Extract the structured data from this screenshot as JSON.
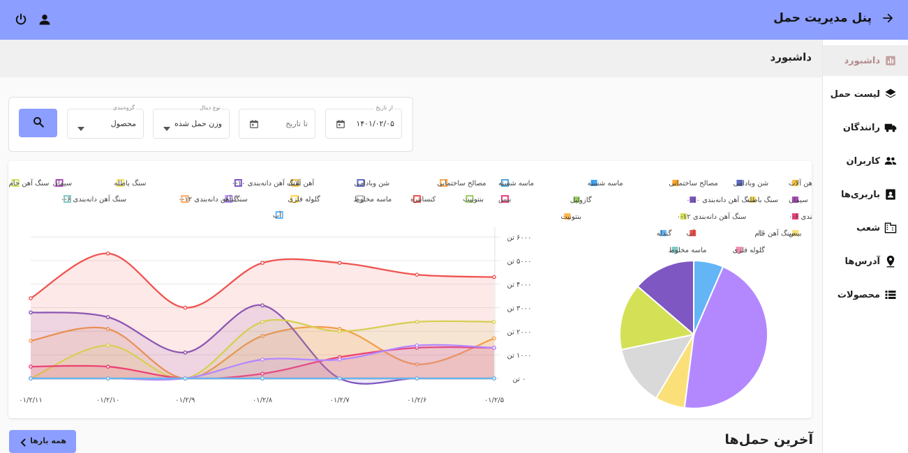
{
  "header": {
    "title": "پنل مدیریت حمل"
  },
  "sidebar": {
    "items": [
      {
        "label": "داشبورد",
        "icon": "chart-icon",
        "active": true
      },
      {
        "label": "لیست حمل",
        "icon": "layers-icon"
      },
      {
        "label": "رانندگان",
        "icon": "truck-icon"
      },
      {
        "label": "کاربران",
        "icon": "people-icon"
      },
      {
        "label": "باربری‌ها",
        "icon": "contact-card-icon"
      },
      {
        "label": "شعب",
        "icon": "building-icon"
      },
      {
        "label": "آدرس‌ها",
        "icon": "location-pin-icon"
      },
      {
        "label": "محصولات",
        "icon": "list-icon"
      }
    ]
  },
  "page": {
    "title": "داشبورد",
    "latest_title": "آخرین حمل‌ها",
    "all_button": "همه بارها"
  },
  "filters": {
    "from_date": {
      "label": "از تاریخ",
      "value": "۱۴۰۱/۰۲/۰۵"
    },
    "to_date": {
      "placeholder": "تا تاریخ"
    },
    "detail_type": {
      "label": "نوع دیتال",
      "value": "وزن حمل شده"
    },
    "grouping": {
      "label": "گروه‌بندی",
      "value": "محصول"
    }
  },
  "chart_data": [
    {
      "type": "area",
      "x": [
        "۰۱/۲/۱۱",
        "۰۱/۲/۱۰",
        "۰۱/۲/۹",
        "۰۱/۲/۸",
        "۰۱/۲/۷",
        "۰۱/۲/۶",
        "۰۱/۲/۵"
      ],
      "y_ticks": [
        "۰ تن",
        "۱۰۰۰ تن",
        "۲۰۰۰ تن",
        "۳۰۰۰ تن",
        "۴۰۰۰ تن",
        "۵۰۰۰ تن",
        "۶۰۰۰ تن"
      ],
      "ylim": [
        0,
        6000
      ],
      "legend": "top",
      "series": [
        {
          "name": "ماسه شسته",
          "color": "#4fa3e0",
          "values": [
            0,
            0,
            0,
            0,
            0,
            0,
            0
          ]
        },
        {
          "name": "مصالح ساختمانی",
          "color": "#f7a54a",
          "values": [
            1600,
            2100,
            0,
            1800,
            2100,
            600,
            1700
          ]
        },
        {
          "name": "شن وبادامی",
          "color": "#5b6bc0",
          "values": [
            0,
            0,
            0,
            0,
            0,
            0,
            0
          ]
        },
        {
          "name": "آهن آلات",
          "color": "#f5c242",
          "values": [
            0,
            0,
            0,
            0,
            0,
            0,
            0
          ]
        },
        {
          "name": "سنگ آهن دانه‌بندی ۱۰-۰",
          "color": "#7e57c2",
          "values": [
            2800,
            2600,
            1100,
            3100,
            0,
            0,
            0
          ]
        },
        {
          "name": "سنگ باطله",
          "color": "#f5e26b",
          "values": [
            0,
            0,
            0,
            0,
            0,
            0,
            0
          ]
        },
        {
          "name": "سیمان",
          "color": "#ab47bc",
          "values": [
            0,
            0,
            0,
            0,
            0,
            0,
            0
          ]
        },
        {
          "name": "سنگ آهن خام",
          "color": "#d4e157",
          "values": [
            0,
            1400,
            0,
            2400,
            2000,
            2400,
            2400
          ]
        },
        {
          "name": "بیس",
          "color": "#ec407a",
          "values": [
            500,
            500,
            0,
            200,
            900,
            1300,
            1300
          ]
        },
        {
          "name": "بنتونیت",
          "color": "#9ccc65",
          "values": [
            0,
            0,
            0,
            0,
            0,
            0,
            0
          ]
        },
        {
          "name": "کنسانتره",
          "color": "#ef5350",
          "values": [
            3400,
            5300,
            3000,
            4900,
            4900,
            4400,
            4300
          ]
        },
        {
          "name": "ماسه مخلوط",
          "color": "#bdbdbd",
          "values": [
            0,
            0,
            0,
            0,
            0,
            0,
            0
          ]
        },
        {
          "name": "گلوله فلزی",
          "color": "#ffd54f",
          "values": [
            0,
            0,
            0,
            0,
            0,
            0,
            0
          ]
        },
        {
          "name": "گندله",
          "color": "#b388ff",
          "values": [
            0,
            0,
            0,
            800,
            800,
            1400,
            1300
          ]
        },
        {
          "name": "سنگ آهن دانه‌بندی ۱۲-۰",
          "color": "#ffab66",
          "values": [
            0,
            0,
            0,
            0,
            0,
            0,
            0
          ]
        },
        {
          "name": "سنگ آهن دانه‌بندی ۶-۰",
          "color": "#80cbc4",
          "values": [
            0,
            0,
            0,
            0,
            0,
            0,
            0
          ]
        },
        {
          "name": "گازوئیل",
          "color": "#f48fb1",
          "values": [
            0,
            0,
            0,
            0,
            0,
            0,
            0
          ]
        },
        {
          "name": "آب",
          "color": "#64b5f6",
          "values": [
            0,
            0,
            0,
            0,
            0,
            0,
            0
          ]
        }
      ]
    },
    {
      "type": "pie",
      "legend": "top",
      "slices": [
        {
          "name": "آهن آلات",
          "color": "#f5c242",
          "value": 0
        },
        {
          "name": "شن وبادامی",
          "color": "#5c6bc0",
          "value": 0
        },
        {
          "name": "مصالح ساختمانی",
          "color": "#ffa726",
          "value": 0
        },
        {
          "name": "ماسه شسته",
          "color": "#42a5f5",
          "value": 0
        },
        {
          "name": "سیمان",
          "color": "#ab47bc",
          "value": 0
        },
        {
          "name": "سنگ باطله",
          "color": "#ffe066",
          "value": 0
        },
        {
          "name": "سنگ آهن دانه‌بندی ۱۰-۰",
          "color": "#7e57c2",
          "value": 13.7
        },
        {
          "name": "گازوئیل",
          "color": "#9ccc65",
          "value": 0
        },
        {
          "name": "سنگ آهن دانه‌بندی ۶-۰",
          "color": "#ec407a",
          "value": 0
        },
        {
          "name": "سنگ آهن دانه‌بندی ۱۲-۰",
          "color": "#d4e157",
          "value": 14.6
        },
        {
          "name": "بنتونیت",
          "color": "#ffb74d",
          "value": 0
        },
        {
          "name": "کنسانتره",
          "color": "#b388ff",
          "value": 45.5
        },
        {
          "name": "بیس",
          "color": "#fbe07a",
          "value": 6.5
        },
        {
          "name": "سنگ آهن خام",
          "color": "#d9d9d9",
          "value": 13.2
        },
        {
          "name": "آب",
          "color": "#ef5350",
          "value": 0
        },
        {
          "name": "گندله",
          "color": "#64b5f6",
          "value": 6.5
        },
        {
          "name": "گلوله فلزی",
          "color": "#f48fb1",
          "value": 0
        },
        {
          "name": "ماسه مخلوط",
          "color": "#80cbc4",
          "value": 0
        }
      ],
      "pie_order": [
        "گندله",
        "کنسانتره",
        "بیس",
        "سنگ آهن خام",
        "سنگ آهن دانه‌بندی ۱۲-۰",
        "سنگ آهن دانه‌بندی ۱۰-۰"
      ]
    }
  ]
}
